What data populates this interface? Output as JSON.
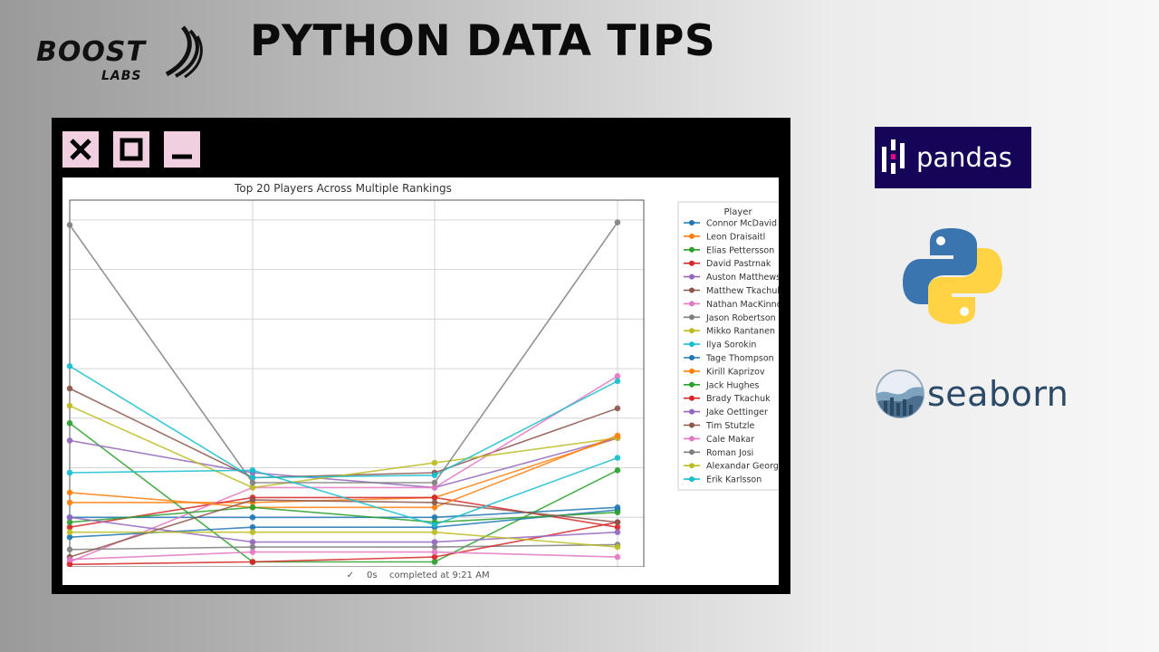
{
  "brand": {
    "logo_line1": "BOOST",
    "logo_line2": "LABS"
  },
  "headline": "PYTHON DATA TIPS",
  "window_controls": [
    "close",
    "maximize",
    "minimize"
  ],
  "status_bar": {
    "check": "✓",
    "duration": "0s",
    "message": "completed at 9:21 AM"
  },
  "logos": {
    "pandas": "pandas",
    "seaborn": "seaborn"
  },
  "chart_data": {
    "type": "line",
    "title": "Top 20 Players Across Multiple Rankings",
    "xlabel": "",
    "ylabel": "",
    "x": [
      0,
      1,
      2,
      3
    ],
    "ylim": [
      0,
      7.4
    ],
    "grid": true,
    "legend_title": "Player",
    "legend_position": "right",
    "series": [
      {
        "name": "Connor McDavid",
        "color": "#1f77b4",
        "values": [
          1.0,
          1.0,
          1.0,
          1.2
        ]
      },
      {
        "name": "Leon Draisaitl",
        "color": "#ff7f0e",
        "values": [
          1.3,
          1.3,
          1.4,
          2.6
        ]
      },
      {
        "name": "Elias Pettersson",
        "color": "#2ca02c",
        "values": [
          2.9,
          0.1,
          0.1,
          1.95
        ]
      },
      {
        "name": "David Pastrnak",
        "color": "#d62728",
        "values": [
          0.8,
          1.4,
          1.4,
          0.8
        ]
      },
      {
        "name": "Auston Matthews",
        "color": "#9467bd",
        "values": [
          2.55,
          1.9,
          1.6,
          2.6
        ]
      },
      {
        "name": "Matthew Tkachuk",
        "color": "#8c564b",
        "values": [
          3.6,
          1.8,
          1.9,
          3.2
        ]
      },
      {
        "name": "Nathan MacKinnon",
        "color": "#e377c2",
        "values": [
          0.1,
          1.6,
          1.6,
          3.85
        ]
      },
      {
        "name": "Jason Robertson",
        "color": "#7f7f7f",
        "values": [
          0.35,
          0.4,
          0.4,
          0.45
        ]
      },
      {
        "name": "Mikko Rantanen",
        "color": "#bcbd22",
        "values": [
          3.25,
          1.6,
          2.1,
          2.6
        ]
      },
      {
        "name": "Ilya Sorokin",
        "color": "#17becf",
        "values": [
          4.05,
          1.8,
          1.85,
          3.75
        ]
      },
      {
        "name": "Tage Thompson",
        "color": "#1f77b4",
        "values": [
          0.6,
          0.8,
          0.8,
          1.15
        ]
      },
      {
        "name": "Kirill Kaprizov",
        "color": "#ff7f0e",
        "values": [
          1.5,
          1.2,
          1.2,
          2.65
        ]
      },
      {
        "name": "Jack Hughes",
        "color": "#2ca02c",
        "values": [
          0.9,
          1.2,
          0.9,
          1.1
        ]
      },
      {
        "name": "Brady Tkachuk",
        "color": "#d62728",
        "values": [
          0.05,
          0.1,
          0.2,
          0.9
        ]
      },
      {
        "name": "Jake Oettinger",
        "color": "#9467bd",
        "values": [
          1.0,
          0.5,
          0.5,
          0.7
        ]
      },
      {
        "name": "Tim Stutzle",
        "color": "#8c564b",
        "values": [
          0.2,
          1.35,
          1.3,
          0.9
        ]
      },
      {
        "name": "Cale Makar",
        "color": "#e377c2",
        "values": [
          0.15,
          0.3,
          0.3,
          0.2
        ]
      },
      {
        "name": "Roman Josi",
        "color": "#7f7f7f",
        "values": [
          6.9,
          1.7,
          1.7,
          6.95
        ]
      },
      {
        "name": "Alexandar Georgiev",
        "color": "#bcbd22",
        "values": [
          0.7,
          0.7,
          0.7,
          0.4
        ]
      },
      {
        "name": "Erik Karlsson",
        "color": "#17becf",
        "values": [
          1.9,
          1.95,
          0.85,
          2.2
        ]
      }
    ]
  }
}
